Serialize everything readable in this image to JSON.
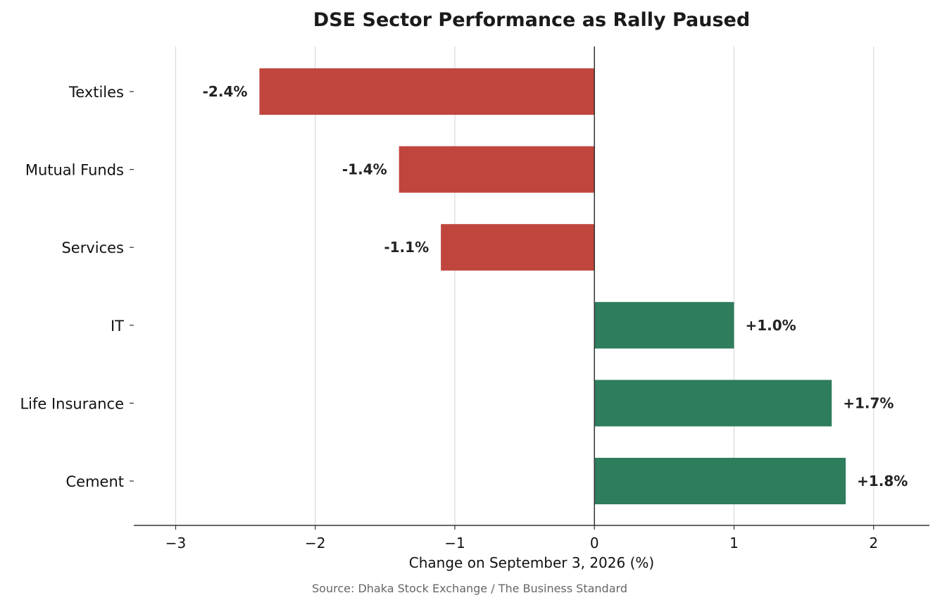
{
  "chart_data": {
    "type": "bar",
    "orientation": "horizontal",
    "title": "DSE Sector Performance as Rally Paused",
    "xlabel": "Change on September 3, 2026 (%)",
    "ylabel": "",
    "source": "Source: Dhaka Stock Exchange / The Business Standard",
    "categories": [
      "Textiles",
      "Mutual Funds",
      "Services",
      "IT",
      "Life Insurance",
      "Cement"
    ],
    "values": [
      -2.4,
      -1.4,
      -1.1,
      1.0,
      1.7,
      1.8
    ],
    "data_labels": [
      "-2.4%",
      "-1.4%",
      "-1.1%",
      "+1.0%",
      "+1.7%",
      "+1.8%"
    ],
    "xlim": [
      -3.3,
      2.4
    ],
    "xticks": [
      -3,
      -2,
      -1,
      0,
      1,
      2
    ],
    "xtick_labels": [
      "−3",
      "−2",
      "−1",
      "0",
      "1",
      "2"
    ],
    "grid": "vertical",
    "zero_line": true,
    "colors": {
      "negative": "#c0463d",
      "positive": "#2e7d5d",
      "grid": "#dddddd",
      "axis": "#333333"
    }
  }
}
